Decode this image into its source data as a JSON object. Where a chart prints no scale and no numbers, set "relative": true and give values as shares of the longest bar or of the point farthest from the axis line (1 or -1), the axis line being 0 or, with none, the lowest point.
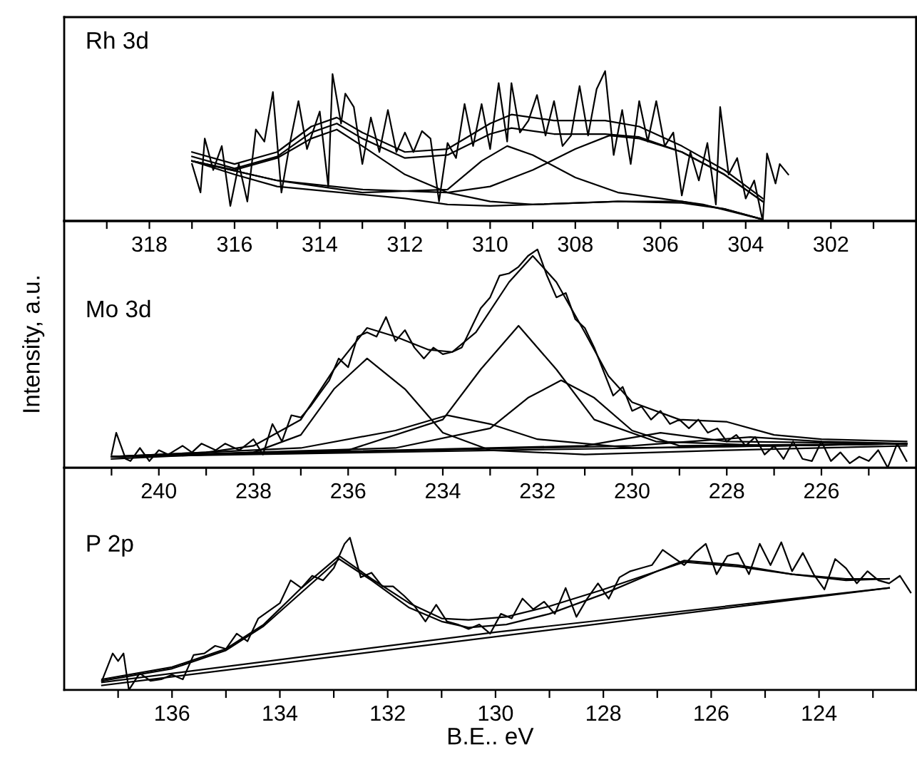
{
  "chart_data": [
    {
      "type": "line",
      "title": "Rh 3d",
      "relative": true,
      "xlim": [
        320,
        300
      ],
      "tick_labels": "x",
      "xticks": [
        {
          "value": 319,
          "label": null
        },
        318,
        {
          "value": 317,
          "label": null
        },
        316,
        {
          "value": 315,
          "label": null
        },
        314,
        {
          "value": 313,
          "label": null
        },
        312,
        {
          "value": 311,
          "label": null
        },
        310,
        {
          "value": 309,
          "label": null
        },
        308,
        {
          "value": 307,
          "label": null
        },
        306,
        {
          "value": 305,
          "label": null
        },
        304,
        {
          "value": 303,
          "label": null
        },
        302,
        {
          "value": 301,
          "label": null
        }
      ],
      "series": [
        {
          "color": "#000000",
          "x": [
            317.0,
            316.8,
            316.7,
            316.5,
            316.3,
            316.1,
            315.9,
            315.7,
            315.5,
            315.3,
            315.1,
            314.9,
            314.7,
            314.5,
            314.3,
            314.0,
            313.8,
            313.7,
            313.5,
            313.4,
            313.2,
            313.0,
            312.8,
            312.6,
            312.4,
            312.2,
            312.0,
            311.8,
            311.6,
            311.4,
            311.2,
            311.0,
            310.8,
            310.6,
            310.4,
            310.2,
            310.0,
            309.8,
            309.6,
            309.5,
            309.3,
            309.1,
            308.9,
            308.7,
            308.5,
            308.3,
            308.1,
            307.9,
            307.7,
            307.5,
            307.3,
            307.1,
            306.9,
            306.7,
            306.5,
            306.3,
            306.1,
            305.9,
            305.7,
            305.5,
            305.3,
            305.1,
            304.9,
            304.7,
            304.6,
            304.4,
            304.2,
            304.0,
            303.8,
            303.6,
            303.5,
            303.3,
            303.2,
            303.0
          ],
          "values": [
            0.38,
            0.19,
            0.55,
            0.34,
            0.5,
            0.1,
            0.38,
            0.13,
            0.61,
            0.53,
            0.86,
            0.19,
            0.52,
            0.8,
            0.48,
            0.73,
            0.23,
            0.98,
            0.65,
            0.85,
            0.76,
            0.38,
            0.69,
            0.46,
            0.74,
            0.46,
            0.59,
            0.46,
            0.6,
            0.55,
            0.13,
            0.52,
            0.42,
            0.78,
            0.5,
            0.78,
            0.48,
            0.92,
            0.53,
            0.92,
            0.59,
            0.67,
            0.84,
            0.57,
            0.8,
            0.5,
            0.57,
            0.9,
            0.57,
            0.88,
            1.0,
            0.44,
            0.74,
            0.38,
            0.8,
            0.53,
            0.8,
            0.5,
            0.59,
            0.17,
            0.46,
            0.27,
            0.52,
            0.11,
            0.76,
            0.31,
            0.42,
            0.15,
            0.27,
            0.0,
            0.45,
            0.25,
            0.38,
            0.31
          ]
        },
        {
          "color": "#000000",
          "x": [
            317.0,
            316.0,
            315.0,
            314.2,
            313.6,
            313.0,
            312.0,
            311.0,
            310.0,
            309.5,
            308.5,
            307.3,
            306.5,
            305.5,
            304.5,
            303.6
          ],
          "values": [
            0.46,
            0.38,
            0.46,
            0.63,
            0.69,
            0.59,
            0.46,
            0.48,
            0.65,
            0.71,
            0.67,
            0.67,
            0.63,
            0.5,
            0.34,
            0.15
          ]
        },
        {
          "color": "#000000",
          "x": [
            317.0,
            316.0,
            315.0,
            314.2,
            313.6,
            313.0,
            312.0,
            311.0,
            310.0,
            309.5,
            308.5,
            307.3,
            306.5,
            305.5,
            304.5,
            303.6
          ],
          "values": [
            0.43,
            0.35,
            0.43,
            0.59,
            0.65,
            0.55,
            0.42,
            0.44,
            0.58,
            0.62,
            0.58,
            0.58,
            0.56,
            0.46,
            0.31,
            0.13
          ]
        },
        {
          "color": "#000000",
          "x": [
            317.0,
            316.0,
            315.0,
            314.2,
            313.6,
            313.0,
            312.0,
            311.0,
            310.0,
            309.0,
            307.0,
            305.5,
            304.5,
            303.6
          ],
          "values": [
            0.4,
            0.34,
            0.42,
            0.55,
            0.61,
            0.5,
            0.31,
            0.19,
            0.13,
            0.11,
            0.13,
            0.13,
            0.08,
            0.01
          ]
        },
        {
          "color": "#000000",
          "x": [
            317.0,
            315.0,
            313.0,
            311.0,
            310.2,
            309.6,
            309.0,
            308.0,
            307.0,
            306.0,
            305.0,
            303.6
          ],
          "values": [
            0.4,
            0.27,
            0.19,
            0.21,
            0.4,
            0.5,
            0.44,
            0.29,
            0.19,
            0.15,
            0.11,
            0.01
          ]
        },
        {
          "color": "#000000",
          "x": [
            317.0,
            315.0,
            313.0,
            311.0,
            310.0,
            309.0,
            308.0,
            307.2,
            306.5,
            305.5,
            304.5,
            303.6
          ],
          "values": [
            0.4,
            0.27,
            0.21,
            0.19,
            0.23,
            0.34,
            0.48,
            0.57,
            0.55,
            0.46,
            0.31,
            0.13
          ]
        },
        {
          "color": "#000000",
          "x": [
            317.0,
            316.0,
            315.0,
            313.5,
            312.0,
            311.0,
            310.0,
            309.0,
            307.0,
            305.5,
            304.5,
            303.6
          ],
          "values": [
            0.4,
            0.31,
            0.23,
            0.19,
            0.15,
            0.11,
            0.1,
            0.11,
            0.13,
            0.12,
            0.08,
            0.01
          ]
        }
      ]
    },
    {
      "type": "line",
      "title": "Mo 3d",
      "ylabel": "Intensity, a.u.",
      "relative": true,
      "xlim": [
        242,
        224
      ],
      "tick_labels": "x",
      "xticks": [
        {
          "value": 241,
          "label": null
        },
        240,
        {
          "value": 239,
          "label": null
        },
        238,
        {
          "value": 237,
          "label": null
        },
        236,
        {
          "value": 235,
          "label": null
        },
        234,
        {
          "value": 233,
          "label": null
        },
        232,
        {
          "value": 231,
          "label": null
        },
        230,
        {
          "value": 229,
          "label": null
        },
        228,
        {
          "value": 227,
          "label": null
        },
        226,
        {
          "value": 225,
          "label": null
        }
      ],
      "series": [
        {
          "color": "#000000",
          "x": [
            241.0,
            240.9,
            240.7,
            240.6,
            240.4,
            240.2,
            240.0,
            239.8,
            239.5,
            239.3,
            239.1,
            238.8,
            238.6,
            238.3,
            238.0,
            237.8,
            237.6,
            237.4,
            237.2,
            237.0,
            236.8,
            236.6,
            236.4,
            236.2,
            236.0,
            235.8,
            235.6,
            235.4,
            235.2,
            235.0,
            234.8,
            234.6,
            234.4,
            234.2,
            234.0,
            233.8,
            233.6,
            233.4,
            233.2,
            233.0,
            232.8,
            232.6,
            232.4,
            232.2,
            232.0,
            231.8,
            231.6,
            231.4,
            231.2,
            231.0,
            230.8,
            230.6,
            230.4,
            230.2,
            230.0,
            229.8,
            229.6,
            229.4,
            229.2,
            229.0,
            228.8,
            228.6,
            228.4,
            228.2,
            228.0,
            227.8,
            227.6,
            227.4,
            227.2,
            227.0,
            226.8,
            226.6,
            226.4,
            226.2,
            226.0,
            225.8,
            225.6,
            225.4,
            225.2,
            225.0,
            224.8,
            224.6,
            224.4,
            224.2
          ],
          "values": [
            0.06,
            0.16,
            0.04,
            0.03,
            0.09,
            0.03,
            0.08,
            0.06,
            0.1,
            0.07,
            0.11,
            0.08,
            0.11,
            0.08,
            0.13,
            0.06,
            0.2,
            0.12,
            0.24,
            0.23,
            0.28,
            0.34,
            0.4,
            0.5,
            0.46,
            0.6,
            0.62,
            0.6,
            0.69,
            0.58,
            0.63,
            0.55,
            0.5,
            0.55,
            0.52,
            0.53,
            0.55,
            0.64,
            0.73,
            0.78,
            0.88,
            0.89,
            0.92,
            0.97,
            1.0,
            0.88,
            0.78,
            0.8,
            0.68,
            0.64,
            0.55,
            0.44,
            0.33,
            0.37,
            0.26,
            0.28,
            0.22,
            0.26,
            0.2,
            0.22,
            0.18,
            0.22,
            0.16,
            0.18,
            0.12,
            0.15,
            0.1,
            0.14,
            0.06,
            0.1,
            0.04,
            0.12,
            0.04,
            0.03,
            0.12,
            0.03,
            0.07,
            0.02,
            0.05,
            0.03,
            0.08,
            0.0,
            0.11,
            0.03
          ]
        },
        {
          "color": "#000000",
          "x": [
            241.0,
            239.0,
            238.0,
            237.0,
            236.3,
            235.6,
            235.0,
            234.3,
            233.8,
            233.3,
            232.6,
            232.1,
            231.6,
            231.0,
            230.5,
            230.0,
            229.0,
            228.0,
            227.0,
            226.0,
            224.2
          ],
          "values": [
            0.05,
            0.07,
            0.1,
            0.22,
            0.45,
            0.64,
            0.6,
            0.54,
            0.53,
            0.62,
            0.85,
            0.97,
            0.85,
            0.62,
            0.42,
            0.3,
            0.22,
            0.21,
            0.15,
            0.13,
            0.12
          ]
        },
        {
          "color": "#000000",
          "x": [
            241.0,
            238.0,
            237.0,
            236.3,
            235.6,
            234.8,
            234.0,
            233.0,
            231.0,
            228.0,
            224.2
          ],
          "values": [
            0.04,
            0.07,
            0.15,
            0.36,
            0.5,
            0.36,
            0.16,
            0.08,
            0.06,
            0.08,
            0.1
          ]
        },
        {
          "color": "#000000",
          "x": [
            241.0,
            237.0,
            235.0,
            233.9,
            233.0,
            232.0,
            230.0,
            224.2
          ],
          "values": [
            0.05,
            0.09,
            0.17,
            0.24,
            0.2,
            0.13,
            0.09,
            0.11
          ]
        },
        {
          "color": "#000000",
          "x": [
            241.0,
            236.0,
            234.0,
            233.2,
            232.4,
            231.6,
            230.8,
            229.5,
            227.0,
            224.2
          ],
          "values": [
            0.05,
            0.08,
            0.22,
            0.45,
            0.65,
            0.45,
            0.22,
            0.12,
            0.1,
            0.11
          ]
        },
        {
          "color": "#000000",
          "x": [
            241.0,
            235.0,
            233.0,
            232.2,
            231.5,
            230.8,
            230.0,
            229.0,
            224.2
          ],
          "values": [
            0.05,
            0.09,
            0.18,
            0.32,
            0.4,
            0.32,
            0.17,
            0.1,
            0.11
          ]
        },
        {
          "color": "#000000",
          "x": [
            241.0,
            231.0,
            229.4,
            228.0,
            224.2
          ],
          "values": [
            0.05,
            0.1,
            0.16,
            0.12,
            0.11
          ]
        },
        {
          "color": "#000000",
          "x": [
            241.0,
            230.0,
            227.5,
            226.0,
            224.2
          ],
          "values": [
            0.05,
            0.1,
            0.14,
            0.12,
            0.11
          ]
        },
        {
          "color": "#000000",
          "x": [
            241.0,
            224.2
          ],
          "values": [
            0.05,
            0.11
          ]
        }
      ]
    },
    {
      "type": "line",
      "title": "P 2p",
      "xlabel": "B.E.. eV",
      "relative": true,
      "xlim": [
        138,
        122.2
      ],
      "tick_labels": "x",
      "xticks": [
        {
          "value": 137,
          "label": null
        },
        136,
        {
          "value": 135,
          "label": null
        },
        134,
        {
          "value": 133,
          "label": null
        },
        132,
        {
          "value": 131,
          "label": null
        },
        130,
        {
          "value": 129,
          "label": null
        },
        128,
        {
          "value": 127,
          "label": null
        },
        126,
        {
          "value": 125,
          "label": null
        },
        124,
        {
          "value": 123,
          "label": null
        }
      ],
      "series": [
        {
          "color": "#000000",
          "x": [
            137.3,
            137.1,
            137.0,
            136.9,
            136.8,
            136.6,
            136.4,
            136.2,
            136.0,
            135.8,
            135.6,
            135.4,
            135.2,
            135.0,
            134.8,
            134.6,
            134.4,
            134.2,
            134.0,
            133.8,
            133.6,
            133.4,
            133.2,
            133.0,
            132.8,
            132.7,
            132.5,
            132.3,
            132.1,
            131.9,
            131.7,
            131.5,
            131.3,
            131.1,
            130.9,
            130.7,
            130.5,
            130.3,
            130.1,
            129.9,
            129.7,
            129.5,
            129.3,
            129.1,
            128.9,
            128.7,
            128.5,
            128.3,
            128.1,
            127.9,
            127.7,
            127.5,
            127.3,
            127.1,
            126.9,
            126.7,
            126.5,
            126.3,
            126.1,
            125.9,
            125.7,
            125.5,
            125.3,
            125.1,
            124.9,
            124.7,
            124.5,
            124.3,
            124.1,
            123.9,
            123.7,
            123.5,
            123.3,
            123.1,
            122.9,
            122.7,
            122.5,
            122.3
          ],
          "values": [
            0.06,
            0.24,
            0.19,
            0.24,
            0.0,
            0.11,
            0.06,
            0.07,
            0.1,
            0.07,
            0.23,
            0.24,
            0.29,
            0.27,
            0.37,
            0.32,
            0.47,
            0.52,
            0.57,
            0.72,
            0.67,
            0.75,
            0.72,
            0.8,
            0.96,
            1.0,
            0.74,
            0.77,
            0.68,
            0.68,
            0.62,
            0.55,
            0.45,
            0.56,
            0.45,
            0.43,
            0.4,
            0.43,
            0.37,
            0.5,
            0.47,
            0.6,
            0.53,
            0.58,
            0.5,
            0.67,
            0.48,
            0.6,
            0.7,
            0.6,
            0.74,
            0.78,
            0.8,
            0.82,
            0.92,
            0.87,
            0.82,
            0.9,
            0.96,
            0.76,
            0.88,
            0.9,
            0.76,
            0.96,
            0.82,
            0.97,
            0.78,
            0.9,
            0.76,
            0.66,
            0.86,
            0.8,
            0.7,
            0.78,
            0.72,
            0.7,
            0.75,
            0.64
          ]
        },
        {
          "color": "#000000",
          "x": [
            137.3,
            136.0,
            135.0,
            134.3,
            133.6,
            132.9,
            132.3,
            131.6,
            131.0,
            130.5,
            129.8,
            129.0,
            128.0,
            127.0,
            126.5,
            125.5,
            124.5,
            123.5,
            122.7
          ],
          "values": [
            0.07,
            0.15,
            0.27,
            0.43,
            0.67,
            0.88,
            0.73,
            0.57,
            0.47,
            0.46,
            0.48,
            0.55,
            0.66,
            0.78,
            0.85,
            0.82,
            0.76,
            0.72,
            0.73
          ]
        },
        {
          "color": "#000000",
          "x": [
            137.3,
            136.0,
            135.0,
            134.3,
            133.6,
            132.9,
            132.3,
            131.6,
            131.0,
            130.5,
            129.8,
            129.0,
            128.0,
            127.0,
            126.5,
            125.5,
            124.5,
            123.5,
            122.7
          ],
          "values": [
            0.06,
            0.14,
            0.26,
            0.42,
            0.64,
            0.86,
            0.72,
            0.54,
            0.45,
            0.41,
            0.43,
            0.5,
            0.63,
            0.78,
            0.84,
            0.81,
            0.76,
            0.73,
            0.73
          ]
        },
        {
          "color": "#000000",
          "x": [
            137.3,
            122.7
          ],
          "values": [
            0.03,
            0.67
          ]
        },
        {
          "color": "#000000",
          "x": [
            137.3,
            130.0,
            122.7
          ],
          "values": [
            0.05,
            0.38,
            0.67
          ]
        }
      ]
    }
  ]
}
